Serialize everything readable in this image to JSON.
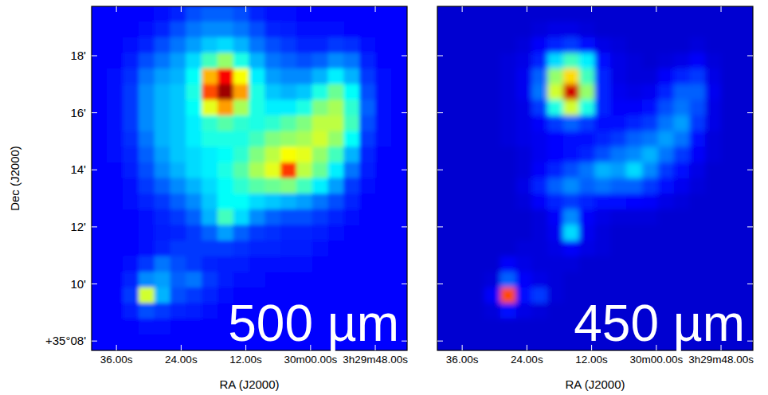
{
  "chart_data": [
    {
      "type": "heatmap",
      "title": "500 µm",
      "x_label": "RA (J2000)",
      "y_label": "Dec (J2000)",
      "xlim": [
        100.6,
        42.1
      ],
      "ylim": [
        7.67,
        19.73
      ],
      "xticks": [
        {
          "value": 96,
          "label": "36.00s"
        },
        {
          "value": 84,
          "label": "24.00s"
        },
        {
          "value": 72,
          "label": "12.00s"
        },
        {
          "value": 60,
          "label": "30m00.00s"
        },
        {
          "value": 48,
          "label": "3h29m48.00s"
        }
      ],
      "yticks": [
        {
          "value": 8,
          "label": "+35°08'"
        },
        {
          "value": 10,
          "label": "10'"
        },
        {
          "value": 12,
          "label": "12'"
        },
        {
          "value": 14,
          "label": "14'"
        },
        {
          "value": 16,
          "label": "16'"
        },
        {
          "value": 18,
          "label": "18'"
        }
      ],
      "zlim": [
        0,
        100
      ],
      "cells": [
        [
          13,
          13,
          13,
          13,
          14,
          16,
          20,
          22,
          22,
          20,
          16,
          14,
          14,
          13,
          13,
          13,
          13,
          13,
          13,
          13
        ],
        [
          13,
          13,
          13,
          14,
          16,
          20,
          24,
          26,
          26,
          24,
          20,
          16,
          15,
          14,
          14,
          14,
          13,
          13,
          13,
          13
        ],
        [
          13,
          13,
          14,
          16,
          20,
          24,
          28,
          32,
          34,
          30,
          24,
          20,
          18,
          16,
          16,
          18,
          17,
          14,
          13,
          13
        ],
        [
          13,
          13,
          15,
          20,
          24,
          28,
          34,
          44,
          52,
          40,
          30,
          24,
          22,
          20,
          22,
          26,
          24,
          16,
          13,
          13
        ],
        [
          13,
          14,
          17,
          24,
          28,
          30,
          38,
          70,
          88,
          62,
          36,
          28,
          26,
          26,
          30,
          36,
          30,
          18,
          14,
          13
        ],
        [
          13,
          14,
          18,
          26,
          30,
          32,
          40,
          80,
          97,
          72,
          40,
          32,
          30,
          32,
          40,
          48,
          38,
          20,
          14,
          13
        ],
        [
          13,
          14,
          18,
          26,
          30,
          32,
          38,
          60,
          72,
          54,
          40,
          36,
          36,
          40,
          50,
          54,
          42,
          22,
          14,
          13
        ],
        [
          13,
          14,
          18,
          26,
          30,
          32,
          36,
          42,
          46,
          42,
          40,
          42,
          46,
          50,
          56,
          56,
          44,
          20,
          14,
          13
        ],
        [
          13,
          14,
          17,
          24,
          30,
          32,
          36,
          40,
          40,
          40,
          44,
          50,
          52,
          54,
          58,
          52,
          38,
          18,
          14,
          13
        ],
        [
          13,
          14,
          16,
          22,
          28,
          32,
          34,
          36,
          38,
          42,
          50,
          56,
          62,
          60,
          52,
          44,
          30,
          16,
          13,
          13
        ],
        [
          13,
          13,
          15,
          20,
          26,
          30,
          34,
          36,
          40,
          46,
          54,
          60,
          82,
          56,
          48,
          36,
          24,
          15,
          13,
          13
        ],
        [
          13,
          13,
          14,
          18,
          22,
          26,
          30,
          34,
          38,
          42,
          46,
          48,
          50,
          44,
          36,
          28,
          18,
          14,
          13,
          13
        ],
        [
          13,
          13,
          14,
          16,
          18,
          22,
          26,
          32,
          38,
          38,
          34,
          32,
          30,
          28,
          24,
          20,
          16,
          13,
          13,
          13
        ],
        [
          13,
          13,
          13,
          14,
          16,
          18,
          22,
          30,
          44,
          34,
          26,
          22,
          20,
          20,
          18,
          16,
          14,
          13,
          13,
          13
        ],
        [
          13,
          13,
          13,
          14,
          15,
          16,
          18,
          22,
          28,
          22,
          18,
          17,
          16,
          16,
          15,
          14,
          13,
          13,
          13,
          13
        ],
        [
          13,
          13,
          13,
          14,
          16,
          18,
          18,
          18,
          18,
          17,
          16,
          16,
          15,
          15,
          14,
          13,
          13,
          13,
          13,
          13
        ],
        [
          13,
          13,
          14,
          18,
          24,
          20,
          18,
          16,
          15,
          15,
          14,
          14,
          14,
          14,
          13,
          13,
          13,
          13,
          13,
          13
        ],
        [
          13,
          13,
          16,
          26,
          28,
          22,
          24,
          18,
          15,
          14,
          14,
          13,
          13,
          13,
          13,
          13,
          13,
          13,
          13,
          13
        ],
        [
          13,
          13,
          18,
          58,
          30,
          20,
          18,
          16,
          14,
          13,
          13,
          13,
          13,
          13,
          13,
          13,
          13,
          13,
          13,
          13
        ],
        [
          13,
          13,
          15,
          20,
          18,
          16,
          15,
          14,
          13,
          13,
          13,
          13,
          13,
          13,
          13,
          13,
          13,
          13,
          13,
          13
        ],
        [
          13,
          13,
          13,
          14,
          14,
          13,
          13,
          13,
          13,
          13,
          13,
          13,
          13,
          13,
          13,
          13,
          13,
          13,
          13,
          13
        ],
        [
          13,
          13,
          13,
          13,
          13,
          13,
          13,
          13,
          13,
          13,
          13,
          13,
          13,
          13,
          13,
          13,
          13,
          13,
          13,
          13
        ]
      ]
    },
    {
      "type": "heatmap",
      "title": "450 µm",
      "x_label": "RA (J2000)",
      "xlim": [
        100.6,
        42.1
      ],
      "ylim": [
        7.67,
        19.73
      ],
      "xticks": [
        {
          "value": 96,
          "label": "36.00s"
        },
        {
          "value": 84,
          "label": "24.00s"
        },
        {
          "value": 72,
          "label": "12.00s"
        },
        {
          "value": 60,
          "label": "30m00.00s"
        },
        {
          "value": 48,
          "label": "3h29m48.00s"
        }
      ],
      "yticks": [
        8,
        10,
        12,
        14,
        16,
        18
      ],
      "tick_labels": "x",
      "zlim": [
        0,
        100
      ],
      "cells": [
        [
          8,
          8,
          8,
          8,
          8,
          8,
          8,
          8,
          8,
          8,
          8,
          8,
          8,
          8,
          8,
          8,
          8,
          8,
          8,
          8
        ],
        [
          8,
          8,
          8,
          8,
          8,
          8,
          9,
          10,
          10,
          9,
          8,
          8,
          8,
          8,
          8,
          8,
          8,
          8,
          8,
          8
        ],
        [
          8,
          8,
          8,
          8,
          8,
          9,
          12,
          16,
          18,
          14,
          10,
          9,
          8,
          8,
          8,
          8,
          9,
          8,
          8,
          8
        ],
        [
          8,
          8,
          8,
          8,
          9,
          10,
          16,
          34,
          44,
          36,
          14,
          10,
          9,
          8,
          9,
          10,
          12,
          9,
          8,
          8
        ],
        [
          8,
          8,
          8,
          8,
          9,
          11,
          22,
          52,
          66,
          44,
          16,
          10,
          9,
          9,
          12,
          16,
          18,
          10,
          8,
          8
        ],
        [
          8,
          8,
          8,
          8,
          9,
          11,
          24,
          58,
          92,
          52,
          16,
          11,
          10,
          11,
          16,
          22,
          22,
          11,
          8,
          8
        ],
        [
          8,
          8,
          8,
          8,
          9,
          10,
          18,
          40,
          58,
          40,
          16,
          12,
          12,
          14,
          20,
          24,
          20,
          10,
          8,
          8
        ],
        [
          8,
          8,
          8,
          8,
          9,
          10,
          12,
          18,
          22,
          18,
          14,
          14,
          16,
          18,
          24,
          28,
          18,
          10,
          8,
          8
        ],
        [
          8,
          8,
          8,
          8,
          9,
          10,
          11,
          13,
          14,
          14,
          16,
          18,
          22,
          24,
          28,
          24,
          14,
          9,
          8,
          8
        ],
        [
          8,
          8,
          8,
          8,
          8,
          9,
          11,
          13,
          14,
          16,
          20,
          24,
          26,
          30,
          24,
          18,
          12,
          9,
          8,
          8
        ],
        [
          8,
          8,
          8,
          8,
          8,
          9,
          12,
          16,
          20,
          24,
          30,
          28,
          34,
          26,
          18,
          14,
          10,
          8,
          8,
          8
        ],
        [
          8,
          8,
          8,
          8,
          8,
          10,
          16,
          22,
          26,
          22,
          24,
          22,
          22,
          18,
          14,
          11,
          9,
          8,
          8,
          8
        ],
        [
          8,
          8,
          8,
          8,
          8,
          9,
          12,
          16,
          18,
          16,
          14,
          14,
          13,
          12,
          10,
          9,
          8,
          8,
          8,
          8
        ],
        [
          8,
          8,
          8,
          8,
          8,
          8,
          9,
          12,
          26,
          12,
          10,
          9,
          9,
          9,
          8,
          8,
          8,
          8,
          8,
          8
        ],
        [
          8,
          8,
          8,
          8,
          8,
          8,
          9,
          11,
          34,
          11,
          9,
          8,
          8,
          8,
          8,
          8,
          8,
          8,
          8,
          8
        ],
        [
          8,
          8,
          8,
          8,
          8,
          9,
          9,
          10,
          12,
          10,
          9,
          8,
          8,
          8,
          8,
          8,
          8,
          8,
          8,
          8
        ],
        [
          8,
          8,
          8,
          8,
          12,
          10,
          9,
          9,
          9,
          8,
          8,
          8,
          8,
          8,
          8,
          8,
          8,
          8,
          8,
          8
        ],
        [
          8,
          8,
          8,
          9,
          22,
          12,
          10,
          9,
          8,
          8,
          8,
          8,
          8,
          8,
          8,
          8,
          8,
          8,
          8,
          8
        ],
        [
          8,
          8,
          8,
          12,
          80,
          14,
          18,
          9,
          8,
          8,
          8,
          8,
          8,
          8,
          8,
          8,
          8,
          8,
          8,
          8
        ],
        [
          8,
          8,
          8,
          9,
          14,
          10,
          9,
          8,
          8,
          8,
          8,
          8,
          8,
          8,
          8,
          8,
          8,
          8,
          8,
          8
        ],
        [
          8,
          8,
          8,
          8,
          8,
          8,
          8,
          8,
          8,
          8,
          8,
          8,
          8,
          8,
          8,
          8,
          8,
          8,
          8,
          8
        ],
        [
          8,
          8,
          8,
          8,
          8,
          8,
          8,
          8,
          8,
          8,
          8,
          8,
          8,
          8,
          8,
          8,
          8,
          8,
          8,
          8
        ]
      ]
    }
  ]
}
